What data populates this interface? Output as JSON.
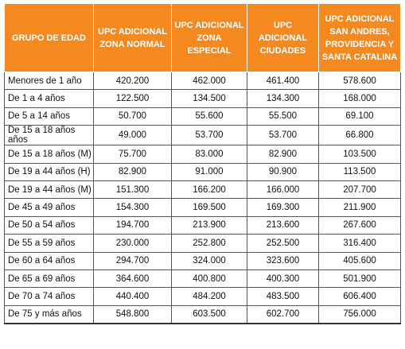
{
  "table": {
    "headers": [
      "GRUPO DE EDAD",
      "UPC ADICIONAL ZONA NORMAL",
      "UPC ADICIONAL ZONA ESPECIAL",
      "UPC ADICIONAL CIUDADES",
      "UPC ADICIONAL SAN ANDRES, PROVIDENCIA Y SANTA CATALINA"
    ],
    "header_color": "#f3891f",
    "rows": [
      [
        "Menores de 1 año",
        "420.200",
        "462.000",
        "461.400",
        "578.600"
      ],
      [
        "De 1 a 4 años",
        "122.500",
        "134.500",
        "134.300",
        "168.000"
      ],
      [
        "De 5 a 14 años",
        "50.700",
        "55.600",
        "55.500",
        "69.100"
      ],
      [
        "De 15 a 18 años años",
        "49.000",
        "53.700",
        "53.700",
        "66.800"
      ],
      [
        "De 15 a 18 años (M)",
        "75.700",
        "83.000",
        "82.900",
        "103.500"
      ],
      [
        "De 19 a 44 años (H)",
        "82.900",
        "91.000",
        "90.900",
        "113.500"
      ],
      [
        "De 19 a 44 años (M)",
        "151.300",
        "166.200",
        "166.000",
        "207.700"
      ],
      [
        "De 45 a 49 años",
        "154.300",
        "169.500",
        "169.300",
        "211.900"
      ],
      [
        "De 50 a 54 años",
        "194.700",
        "213.900",
        "213.600",
        "267.600"
      ],
      [
        "De 55 a 59 años",
        "230.000",
        "252.800",
        "252.500",
        "316.400"
      ],
      [
        "De 60 a 64 años",
        "294.700",
        "324.000",
        "323.600",
        "405.600"
      ],
      [
        "De 65 a 69 años",
        "364.600",
        "400.800",
        "400.300",
        "501.900"
      ],
      [
        "De 70 a 74 años",
        "440.400",
        "484.200",
        "483.500",
        "606.400"
      ],
      [
        "De 75 y más años",
        "548.800",
        "603.500",
        "602.700",
        "756.000"
      ]
    ]
  }
}
